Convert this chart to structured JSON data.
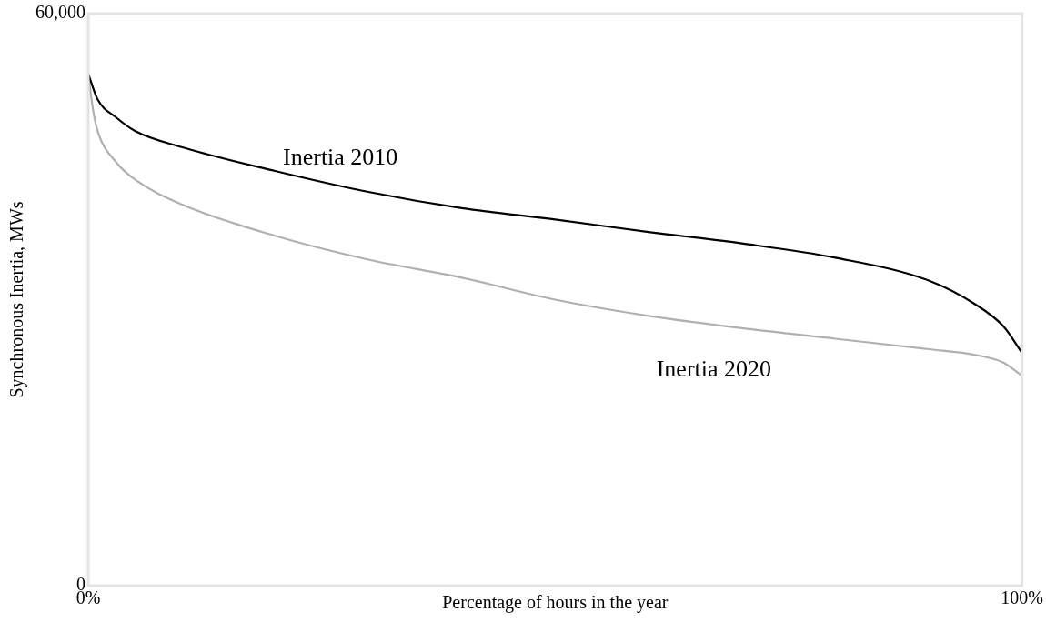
{
  "chart_data": {
    "type": "line",
    "xlabel": "Percentage of hours in the year",
    "ylabel": "Synchronous Inertia, MWs",
    "xlim": [
      0,
      100
    ],
    "xticks": [
      {
        "value": 0,
        "label": "0%"
      },
      {
        "value": 100,
        "label": "100%"
      }
    ],
    "ylim": [
      0,
      60000
    ],
    "yticks": [
      0,
      {
        "value": 60000,
        "label": "60,000"
      }
    ],
    "legend": false,
    "marker": "none",
    "line_style": "solid",
    "series": [
      {
        "name": "Inertia 2010",
        "color": "#000000",
        "x": [
          0,
          1,
          3,
          5,
          10,
          20,
          30,
          40,
          50,
          60,
          70,
          80,
          90,
          95,
          98,
          100
        ],
        "values": [
          53700,
          51000,
          49100,
          47700,
          46000,
          43500,
          41300,
          39600,
          38400,
          37100,
          35900,
          34400,
          32000,
          29500,
          27200,
          24400
        ]
      },
      {
        "name": "Inertia 2020",
        "color": "#b0b0b0",
        "x": [
          0,
          0.5,
          1,
          3,
          5,
          10,
          20,
          30,
          40,
          50,
          60,
          70,
          80,
          90,
          95,
          98,
          100
        ],
        "values": [
          53700,
          50000,
          47700,
          44400,
          42600,
          40000,
          36700,
          34200,
          32300,
          30000,
          28300,
          27000,
          25900,
          24800,
          24200,
          23400,
          22000
        ]
      }
    ]
  }
}
